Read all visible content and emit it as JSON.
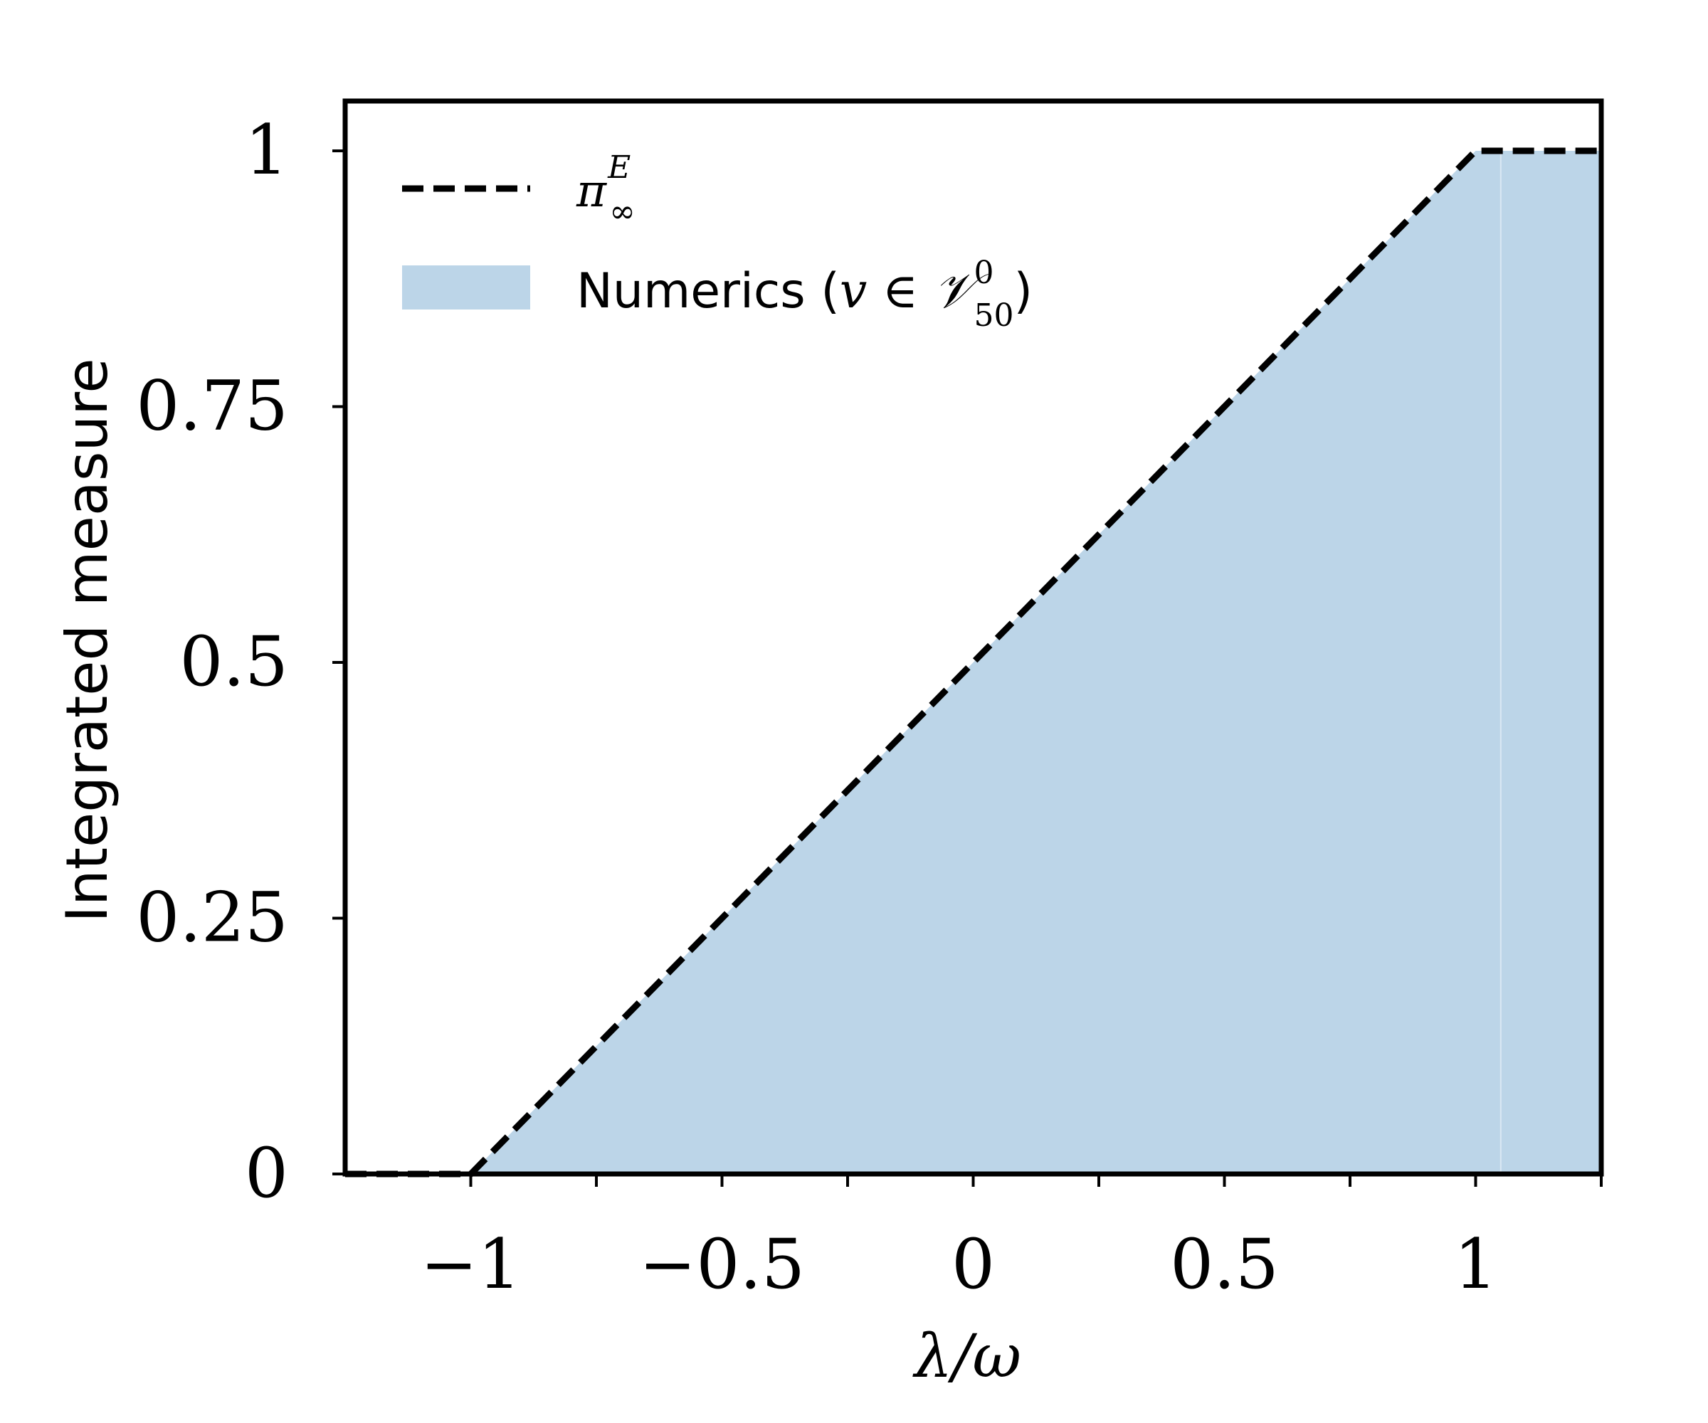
{
  "chart_data": {
    "type": "area",
    "xlabel": "λ/ω",
    "ylabel": "Integrated measure",
    "xlim": [
      -1.25,
      1.25
    ],
    "ylim": [
      0,
      1.05
    ],
    "xticks": [
      -1,
      -0.75,
      -0.5,
      -0.25,
      0,
      0.25,
      0.5,
      0.75,
      1,
      1.25
    ],
    "xtick_labels": [
      {
        "value": -1,
        "label": "−1"
      },
      {
        "value": -0.5,
        "label": "−0.5"
      },
      {
        "value": 0,
        "label": "0"
      },
      {
        "value": 0.5,
        "label": "0.5"
      },
      {
        "value": 1,
        "label": "1"
      }
    ],
    "yticks": [
      {
        "value": 0,
        "label": "0"
      },
      {
        "value": 0.25,
        "label": "0.25"
      },
      {
        "value": 0.5,
        "label": "0.5"
      },
      {
        "value": 0.75,
        "label": "0.75"
      },
      {
        "value": 1,
        "label": "1"
      }
    ],
    "grid": false,
    "legend_position": "top-left",
    "series": [
      {
        "name": "π∞E",
        "kind": "line",
        "style": "dashed",
        "color": "#000000",
        "x": [
          -1.25,
          -1,
          1,
          1.25
        ],
        "y": [
          0,
          0,
          1,
          1
        ]
      },
      {
        "name": "Numerics (v ∈ V500)",
        "kind": "area",
        "color": "#bcd5e8",
        "x": [
          -1,
          1,
          1.25
        ],
        "y": [
          0,
          1,
          1
        ],
        "edge_x": 1.05
      }
    ],
    "legend": {
      "line_label": {
        "base": "π",
        "sup": "E",
        "sub": "∞"
      },
      "area_label": {
        "prefix": "Numerics (",
        "var": "v",
        "op": " ∈ ",
        "set": "𝒱",
        "sup": "0",
        "sub": "50",
        "suffix": ")"
      }
    }
  }
}
